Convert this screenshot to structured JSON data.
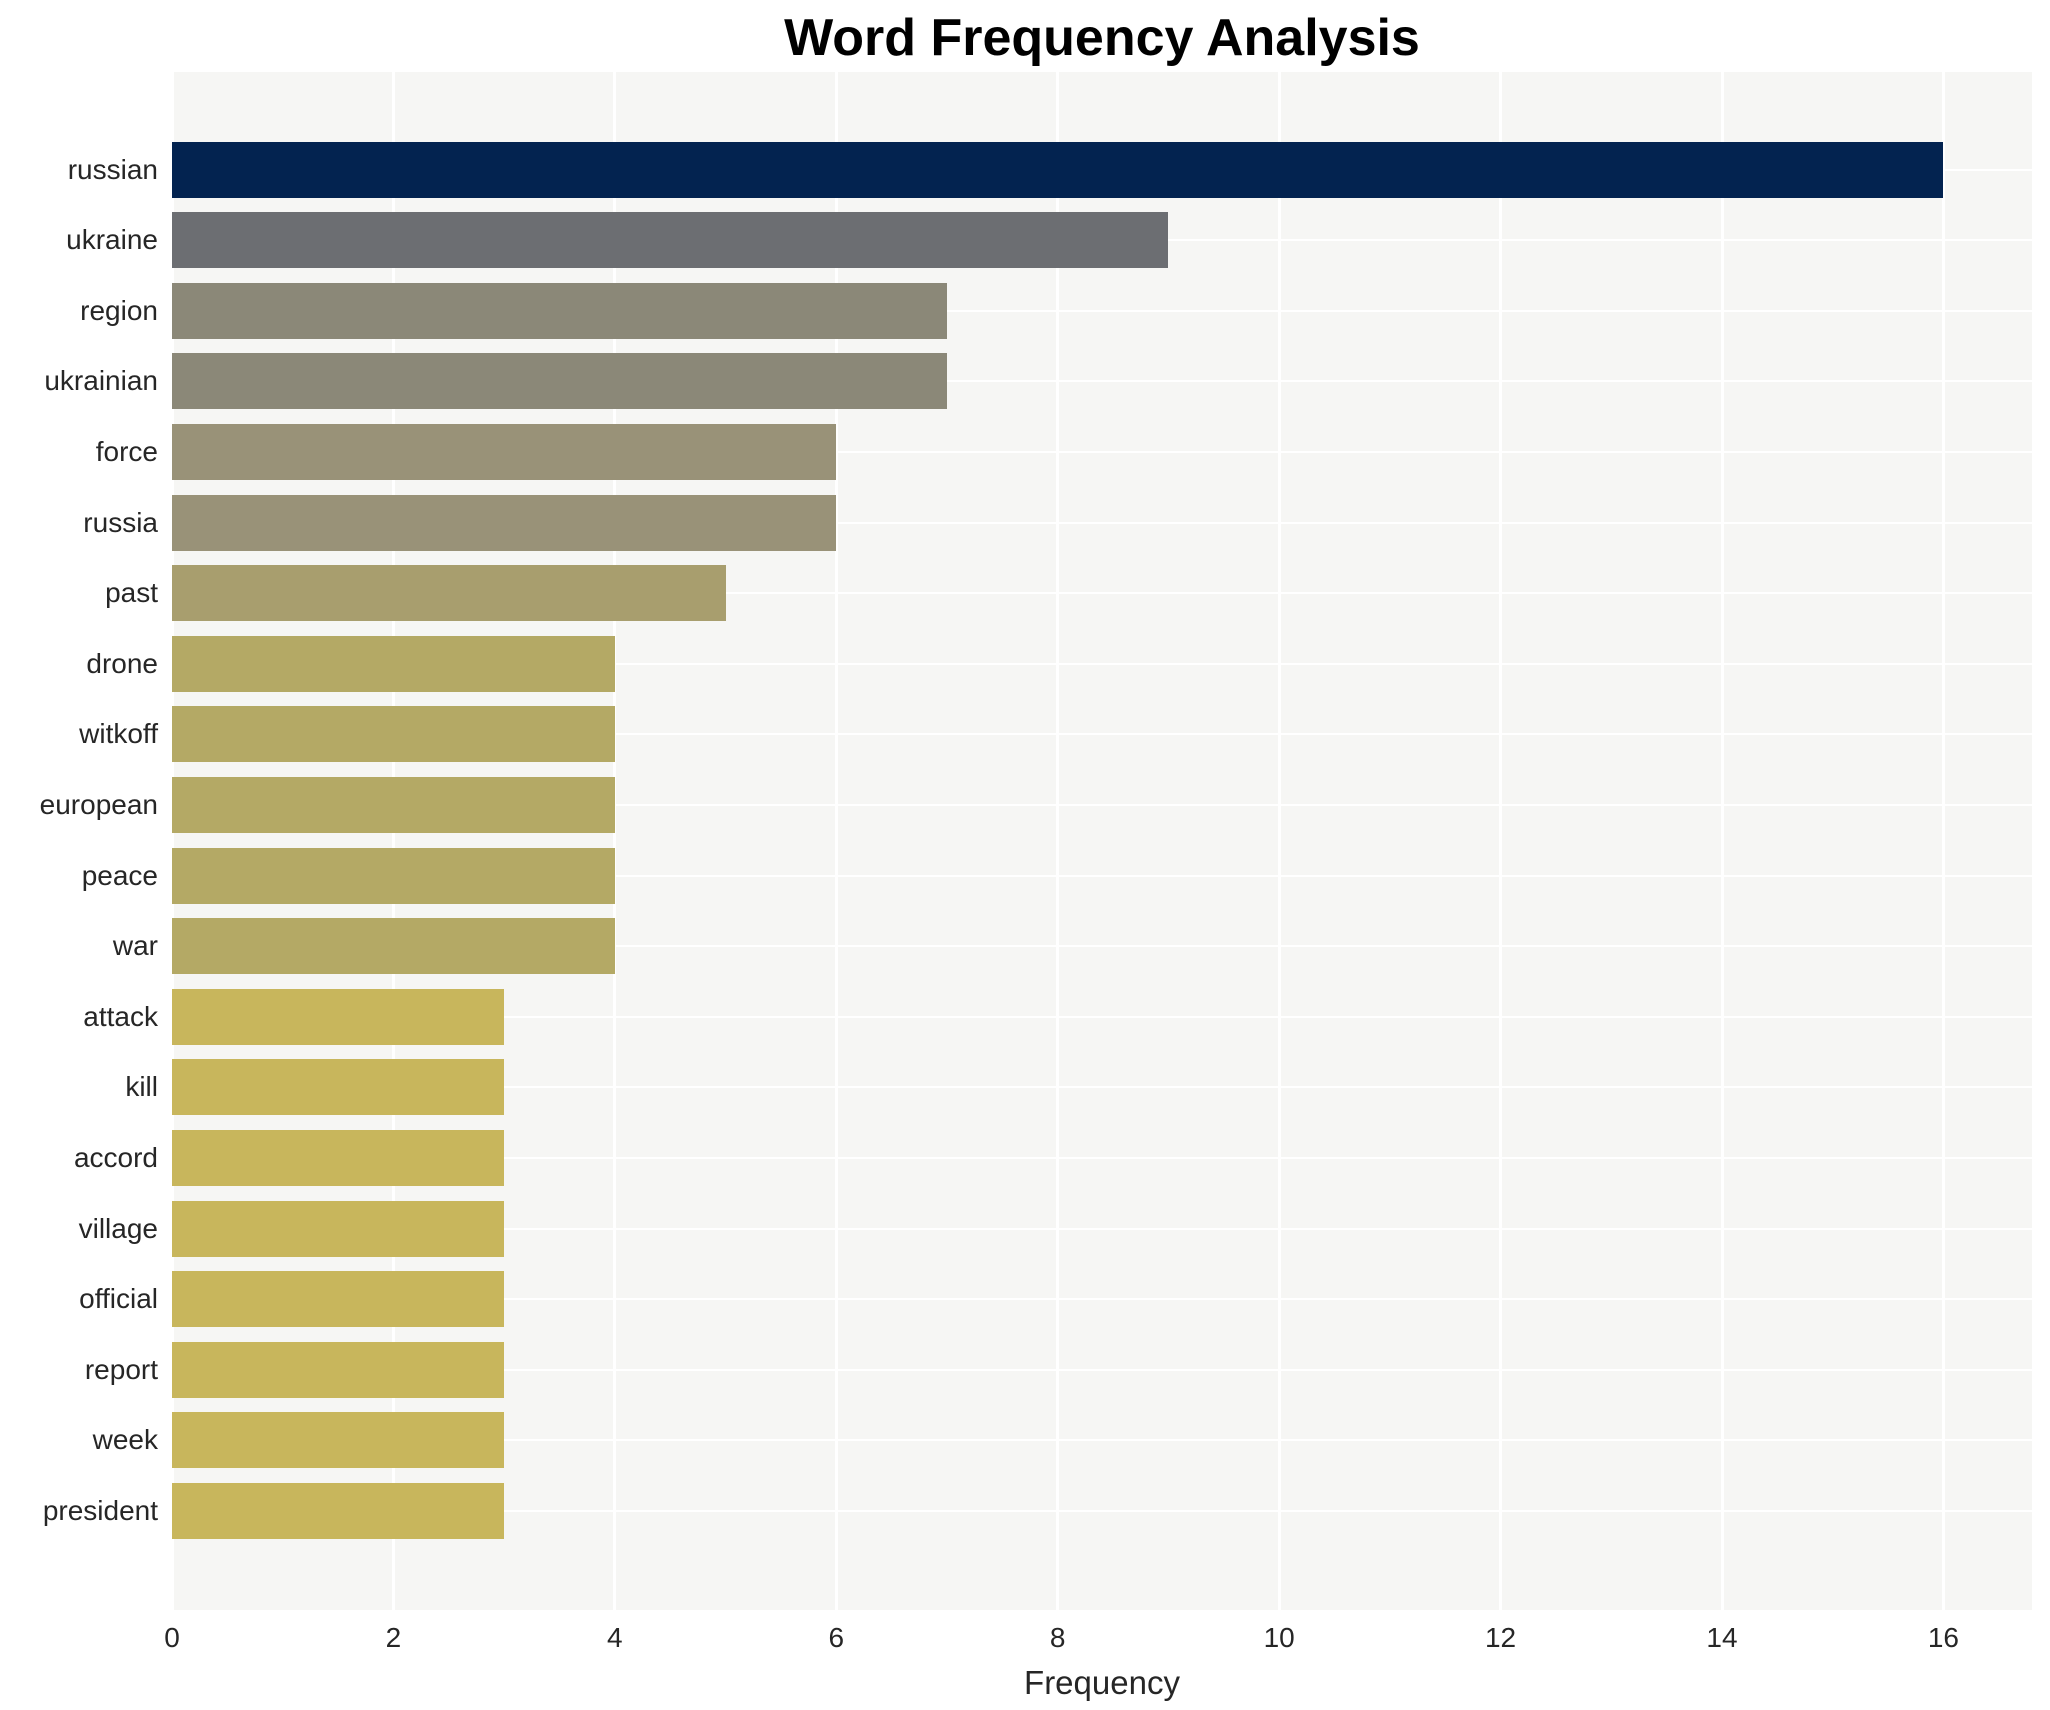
{
  "chart_data": {
    "type": "bar",
    "orientation": "horizontal",
    "title": "Word Frequency Analysis",
    "xlabel": "Frequency",
    "ylabel": "",
    "categories": [
      "russian",
      "ukraine",
      "region",
      "ukrainian",
      "force",
      "russia",
      "past",
      "drone",
      "witkoff",
      "european",
      "peace",
      "war",
      "attack",
      "kill",
      "accord",
      "village",
      "official",
      "report",
      "week",
      "president"
    ],
    "values": [
      16,
      9,
      7,
      7,
      6,
      6,
      5,
      4,
      4,
      4,
      4,
      4,
      3,
      3,
      3,
      3,
      3,
      3,
      3,
      3
    ],
    "bar_colors": [
      "#032350",
      "#6c6e72",
      "#8b8878",
      "#8b8878",
      "#999278",
      "#999278",
      "#a89e6e",
      "#b4a965",
      "#b4a965",
      "#b4a965",
      "#b4a965",
      "#b4a965",
      "#c8b65c",
      "#c8b65c",
      "#c8b65c",
      "#c8b65c",
      "#c8b65c",
      "#c8b65c",
      "#c8b65c",
      "#c8b65c"
    ],
    "xlim": [
      0,
      16.8
    ],
    "xticks": [
      "0",
      "2",
      "4",
      "6",
      "8",
      "10",
      "12",
      "14",
      "16"
    ],
    "grid": true,
    "legend": "none",
    "plot_background": "#f6f6f4",
    "grid_color": "#ffffff",
    "text_color": "#262626",
    "title_color": "#000000"
  }
}
